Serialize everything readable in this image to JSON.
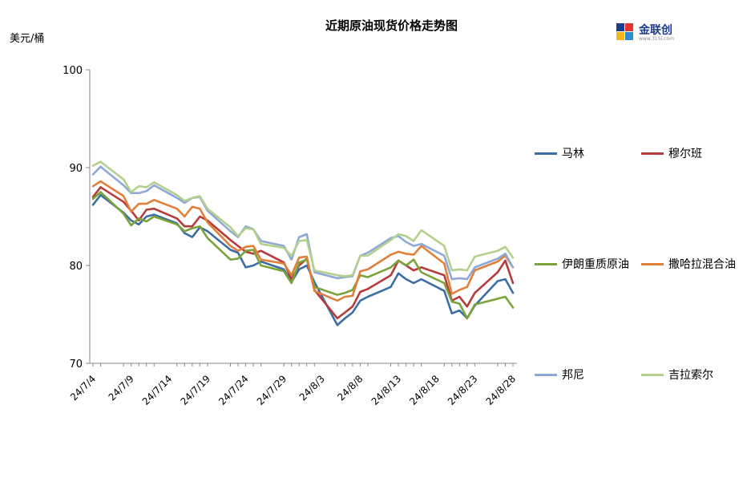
{
  "header": {
    "title": "近期原油现货价格走势图",
    "unit": "美元/桶",
    "logo_text": "金联创",
    "logo_sub": "www.315i.com"
  },
  "chart_data": {
    "type": "line",
    "title": "近期原油现货价格走势图",
    "ylabel": "美元/桶",
    "xlabel": "",
    "ylim": [
      70,
      100
    ],
    "yticks": [
      70,
      80,
      90,
      100
    ],
    "xtick_labels": [
      "24/7/4",
      "24/7/9",
      "24/7/14",
      "24/7/19",
      "24/7/24",
      "24/7/29",
      "24/8/3",
      "24/8/8",
      "24/8/13",
      "24/8/18",
      "24/8/23",
      "24/8/28"
    ],
    "x": [
      "24/7/4",
      "24/7/5",
      "24/7/8",
      "24/7/9",
      "24/7/10",
      "24/7/11",
      "24/7/12",
      "24/7/15",
      "24/7/16",
      "24/7/17",
      "24/7/18",
      "24/7/19",
      "24/7/22",
      "24/7/23",
      "24/7/24",
      "24/7/25",
      "24/7/26",
      "24/7/29",
      "24/7/30",
      "24/7/31",
      "24/8/1",
      "24/8/2",
      "24/8/5",
      "24/8/6",
      "24/8/7",
      "24/8/8",
      "24/8/9",
      "24/8/12",
      "24/8/13",
      "24/8/14",
      "24/8/15",
      "24/8/16",
      "24/8/19",
      "24/8/20",
      "24/8/21",
      "24/8/22",
      "24/8/23",
      "24/8/26",
      "24/8/27",
      "24/8/28"
    ],
    "legend_position": "right",
    "grid": false,
    "series": [
      {
        "name": "马林",
        "color": "#3c6ea5",
        "values": [
          86.2,
          87.2,
          85.4,
          84.6,
          84.2,
          85.0,
          85.2,
          84.3,
          83.3,
          82.9,
          83.9,
          83.5,
          81.6,
          81.3,
          79.8,
          80.0,
          80.4,
          79.6,
          78.3,
          79.6,
          80.0,
          78.3,
          73.9,
          74.6,
          75.2,
          76.4,
          76.8,
          77.8,
          79.2,
          78.6,
          78.2,
          78.6,
          77.4,
          75.1,
          75.4,
          74.6,
          75.9,
          78.4,
          78.6,
          77.2
        ]
      },
      {
        "name": "穆尔班",
        "color": "#b63c3c",
        "values": [
          87.0,
          88.0,
          86.5,
          85.6,
          84.6,
          85.7,
          85.8,
          84.8,
          84.0,
          84.0,
          85.0,
          84.6,
          82.6,
          82.0,
          81.4,
          81.2,
          81.5,
          80.3,
          78.6,
          80.0,
          80.7,
          77.5,
          74.6,
          75.2,
          75.8,
          77.3,
          77.6,
          79.0,
          80.5,
          80.0,
          79.5,
          79.8,
          79.0,
          76.4,
          76.8,
          75.8,
          77.2,
          79.3,
          80.5,
          78.2
        ]
      },
      {
        "name": "伊朗重质原油",
        "color": "#7aa339",
        "values": [
          86.8,
          87.5,
          85.3,
          84.1,
          84.8,
          84.5,
          85.0,
          84.2,
          83.5,
          83.8,
          84.0,
          82.8,
          80.6,
          80.7,
          81.5,
          81.6,
          80.0,
          79.4,
          78.2,
          80.3,
          80.6,
          77.8,
          77.0,
          77.2,
          77.5,
          79.0,
          78.8,
          79.8,
          80.5,
          80.0,
          80.6,
          79.3,
          78.2,
          76.3,
          76.1,
          74.6,
          76.0,
          76.6,
          76.8,
          75.7
        ]
      },
      {
        "name": "撒哈拉混合油",
        "color": "#e0803a",
        "values": [
          88.1,
          88.6,
          87.1,
          85.5,
          86.3,
          86.3,
          86.7,
          85.8,
          85.0,
          86.0,
          85.8,
          84.4,
          82.0,
          81.5,
          81.9,
          82.0,
          80.6,
          80.2,
          79.0,
          80.8,
          80.9,
          77.4,
          76.4,
          76.8,
          76.9,
          79.4,
          79.6,
          81.1,
          81.4,
          81.2,
          81.1,
          82.0,
          80.2,
          77.1,
          77.5,
          77.8,
          79.5,
          80.4,
          81.0,
          79.8
        ]
      },
      {
        "name": "邦尼",
        "color": "#8ea9d7",
        "values": [
          89.3,
          90.1,
          88.2,
          87.4,
          87.4,
          87.6,
          88.2,
          86.9,
          86.4,
          86.9,
          87.0,
          85.6,
          83.5,
          82.9,
          84.0,
          83.7,
          82.5,
          82.0,
          80.6,
          82.9,
          83.2,
          79.3,
          78.7,
          78.8,
          78.9,
          81.0,
          81.3,
          82.8,
          83.0,
          82.4,
          82.0,
          82.2,
          81.0,
          78.6,
          78.7,
          78.6,
          79.8,
          80.7,
          81.2,
          79.8
        ]
      },
      {
        "name": "吉拉索尔",
        "color": "#b4d08c",
        "values": [
          90.2,
          90.6,
          88.8,
          87.5,
          88.1,
          88.0,
          88.5,
          87.2,
          86.6,
          86.9,
          87.1,
          85.8,
          83.9,
          83.0,
          83.8,
          83.7,
          82.2,
          81.8,
          81.0,
          82.5,
          82.6,
          79.5,
          79.0,
          78.9,
          79.0,
          81.0,
          81.0,
          82.6,
          83.2,
          83.0,
          82.5,
          83.6,
          82.0,
          79.5,
          79.6,
          79.5,
          80.9,
          81.5,
          81.9,
          80.8
        ]
      }
    ]
  }
}
